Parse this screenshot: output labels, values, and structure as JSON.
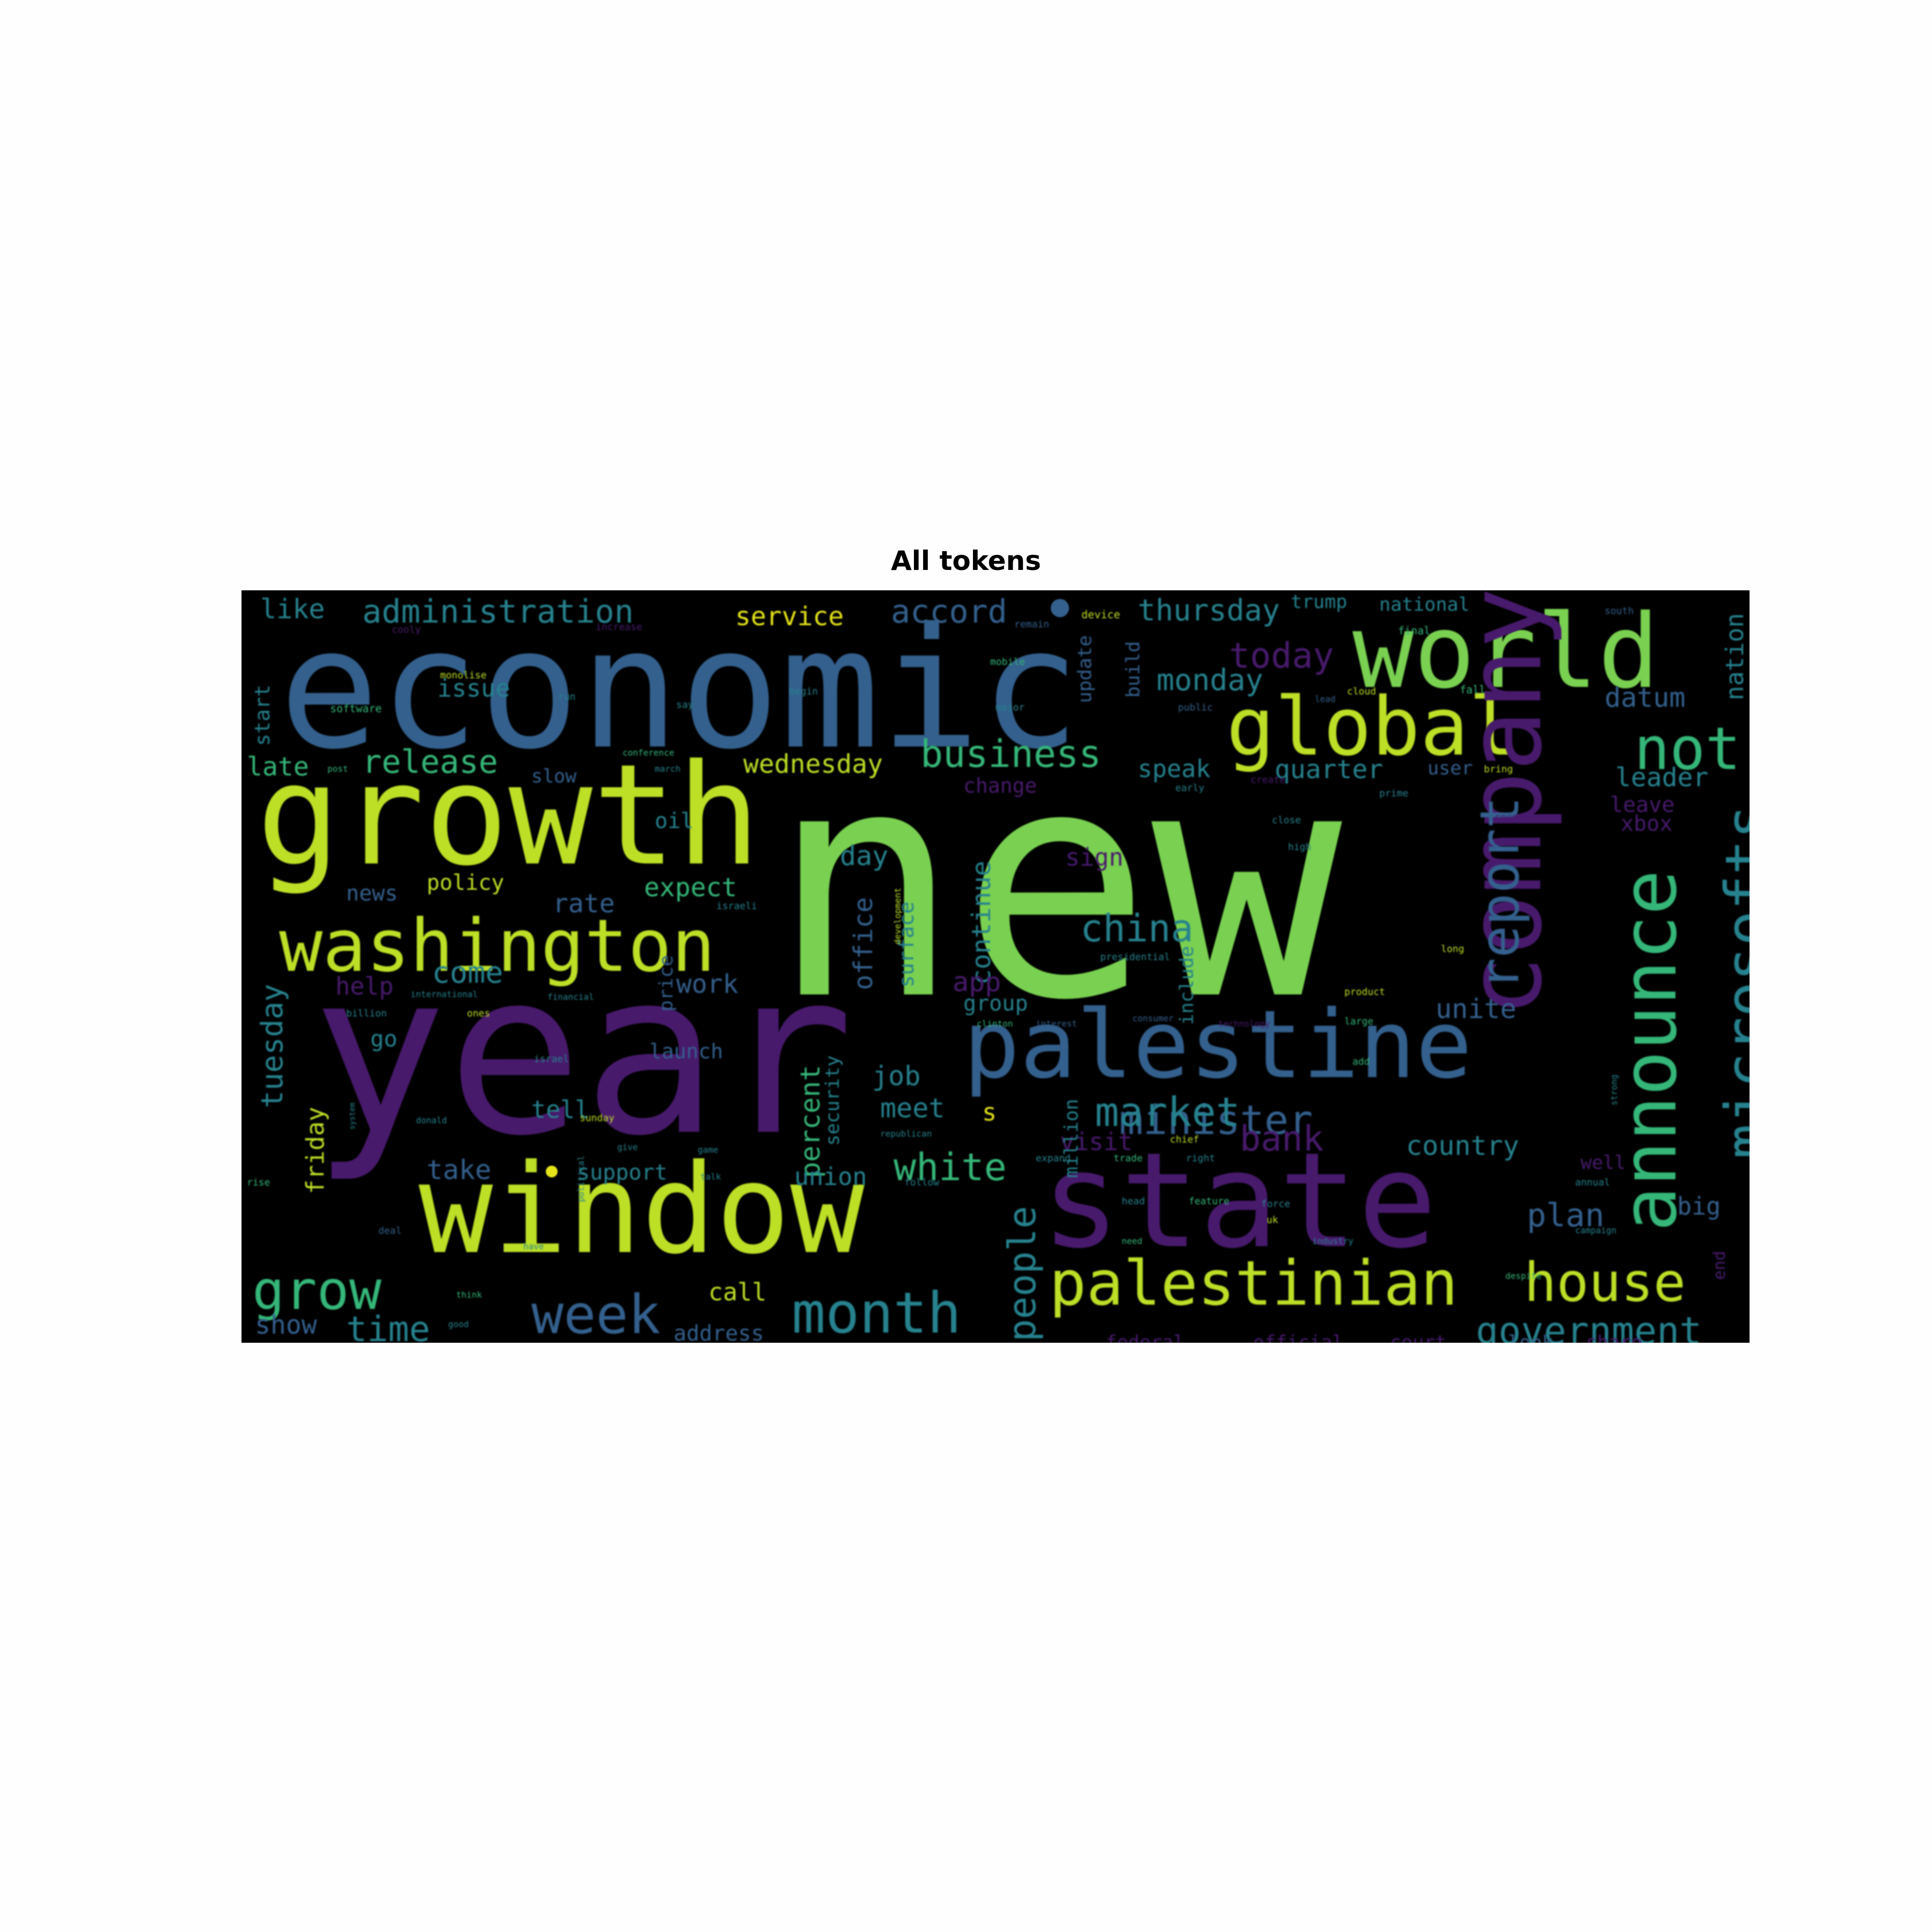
{
  "title": "All tokens",
  "palette": {
    "purple": "#481a6c",
    "blue": "#34608d",
    "teal": "#26828e",
    "green": "#35b779",
    "lime": "#7ad151",
    "yellow": "#bddf26",
    "brightyellow": "#e5e419"
  },
  "words": [
    {
      "text": "economic",
      "color": "blue"
    },
    {
      "text": "new",
      "color": "lime"
    },
    {
      "text": "year",
      "color": "purple"
    },
    {
      "text": "growth",
      "color": "yellow"
    },
    {
      "text": "window",
      "color": "yellow"
    },
    {
      "text": "state",
      "color": "purple"
    },
    {
      "text": "palestine",
      "color": "blue"
    },
    {
      "text": "world",
      "color": "lime"
    },
    {
      "text": "global",
      "color": "yellow"
    },
    {
      "text": "company",
      "color": "purple"
    },
    {
      "text": "washington",
      "color": "yellow"
    },
    {
      "text": "announce",
      "color": "green"
    },
    {
      "text": "microsofts",
      "color": "teal"
    },
    {
      "text": "palestinian",
      "color": "yellow"
    },
    {
      "text": "report",
      "color": "blue"
    },
    {
      "text": "house",
      "color": "yellow"
    },
    {
      "text": "not",
      "color": "green"
    },
    {
      "text": "month",
      "color": "teal"
    },
    {
      "text": "week",
      "color": "blue"
    },
    {
      "text": "grow",
      "color": "green"
    },
    {
      "text": "government",
      "color": "teal"
    },
    {
      "text": "minister",
      "color": "blue"
    },
    {
      "text": "market",
      "color": "teal"
    },
    {
      "text": "china",
      "color": "teal"
    },
    {
      "text": "business",
      "color": "green"
    },
    {
      "text": "people",
      "color": "teal"
    },
    {
      "text": "white",
      "color": "green"
    },
    {
      "text": "administration",
      "color": "teal"
    },
    {
      "text": "accord",
      "color": "blue"
    },
    {
      "text": "thursday",
      "color": "teal"
    },
    {
      "text": "today",
      "color": "purple"
    },
    {
      "text": "monday",
      "color": "teal"
    },
    {
      "text": "bank",
      "color": "purple"
    },
    {
      "text": "plan",
      "color": "blue"
    },
    {
      "text": "time",
      "color": "teal"
    },
    {
      "text": "release",
      "color": "green"
    },
    {
      "text": "percent",
      "color": "green"
    },
    {
      "text": "tuesday",
      "color": "teal"
    },
    {
      "text": "continue",
      "color": "teal"
    },
    {
      "text": "office",
      "color": "blue"
    },
    {
      "text": "surface",
      "color": "teal"
    },
    {
      "text": "include",
      "color": "teal"
    },
    {
      "text": "unite",
      "color": "blue"
    },
    {
      "text": "country",
      "color": "teal"
    },
    {
      "text": "datum",
      "color": "blue"
    },
    {
      "text": "nation",
      "color": "teal"
    },
    {
      "text": "quarter",
      "color": "teal"
    },
    {
      "text": "leader",
      "color": "teal"
    },
    {
      "text": "xbox",
      "color": "purple"
    },
    {
      "text": "leave",
      "color": "purple"
    },
    {
      "text": "service",
      "color": "brightyellow"
    },
    {
      "text": "wednesday",
      "color": "yellow"
    },
    {
      "text": "speak",
      "color": "teal"
    },
    {
      "text": "change",
      "color": "purple"
    },
    {
      "text": "like",
      "color": "teal"
    },
    {
      "text": "issue",
      "color": "teal"
    },
    {
      "text": "late",
      "color": "green"
    },
    {
      "text": "start",
      "color": "teal"
    },
    {
      "text": "day",
      "color": "teal"
    },
    {
      "text": "oil",
      "color": "teal"
    },
    {
      "text": "rate",
      "color": "blue"
    },
    {
      "text": "expect",
      "color": "green"
    },
    {
      "text": "policy",
      "color": "yellow"
    },
    {
      "text": "news",
      "color": "blue"
    },
    {
      "text": "help",
      "color": "purple"
    },
    {
      "text": "come",
      "color": "teal"
    },
    {
      "text": "work",
      "color": "blue"
    },
    {
      "text": "app",
      "color": "purple"
    },
    {
      "text": "group",
      "color": "teal"
    },
    {
      "text": "sign",
      "color": "purple"
    },
    {
      "text": "friday",
      "color": "yellow"
    },
    {
      "text": "take",
      "color": "blue"
    },
    {
      "text": "support",
      "color": "teal"
    },
    {
      "text": "union",
      "color": "teal"
    },
    {
      "text": "job",
      "color": "teal"
    },
    {
      "text": "meet",
      "color": "teal"
    },
    {
      "text": "visit",
      "color": "purple"
    },
    {
      "text": "million",
      "color": "teal"
    },
    {
      "text": "call",
      "color": "yellow"
    },
    {
      "text": "show",
      "color": "blue"
    },
    {
      "text": "address",
      "color": "blue"
    },
    {
      "text": "tell",
      "color": "teal"
    },
    {
      "text": "launch",
      "color": "blue"
    },
    {
      "text": "price",
      "color": "blue"
    },
    {
      "text": "security",
      "color": "teal"
    },
    {
      "text": "go",
      "color": "teal"
    },
    {
      "text": "update",
      "color": "blue"
    },
    {
      "text": "build",
      "color": "blue"
    },
    {
      "text": "slow",
      "color": "blue"
    },
    {
      "text": "big",
      "color": "blue"
    },
    {
      "text": "official",
      "color": "purple"
    },
    {
      "text": "court",
      "color": "purple"
    },
    {
      "text": "federal",
      "color": "purple"
    },
    {
      "text": "look",
      "color": "blue"
    },
    {
      "text": "share",
      "color": "purple"
    },
    {
      "text": "trump",
      "color": "teal"
    },
    {
      "text": "national",
      "color": "teal"
    },
    {
      "text": "user",
      "color": "blue"
    },
    {
      "text": "well",
      "color": "purple"
    },
    {
      "text": "end",
      "color": "purple"
    },
    {
      "text": "s",
      "color": "brightyellow"
    },
    {
      "text": "device",
      "color": "yellow"
    },
    {
      "text": "software",
      "color": "green"
    },
    {
      "text": "monolise",
      "color": "yellow"
    },
    {
      "text": "mobile",
      "color": "green"
    },
    {
      "text": "public",
      "color": "blue"
    },
    {
      "text": "major",
      "color": "teal"
    },
    {
      "text": "begin",
      "color": "teal"
    },
    {
      "text": "run",
      "color": "teal"
    },
    {
      "text": "say",
      "color": "teal"
    },
    {
      "text": "conference",
      "color": "green"
    },
    {
      "text": "march",
      "color": "teal"
    },
    {
      "text": "post",
      "color": "green"
    },
    {
      "text": "cloud",
      "color": "yellow"
    },
    {
      "text": "lead",
      "color": "blue"
    },
    {
      "text": "fall",
      "color": "green"
    },
    {
      "text": "final",
      "color": "green"
    },
    {
      "text": "south",
      "color": "blue"
    },
    {
      "text": "remain",
      "color": "blue"
    },
    {
      "text": "increase",
      "color": "purple"
    },
    {
      "text": "cooly",
      "color": "purple"
    },
    {
      "text": "bring",
      "color": "yellow"
    },
    {
      "text": "prime",
      "color": "teal"
    },
    {
      "text": "early",
      "color": "teal"
    },
    {
      "text": "create",
      "color": "purple"
    },
    {
      "text": "close",
      "color": "teal"
    },
    {
      "text": "spend",
      "color": "purple"
    },
    {
      "text": "high",
      "color": "teal"
    },
    {
      "text": "long",
      "color": "yellow"
    },
    {
      "text": "presidential",
      "color": "teal"
    },
    {
      "text": "development",
      "color": "yellow"
    },
    {
      "text": "israeli",
      "color": "teal"
    },
    {
      "text": "israel",
      "color": "teal"
    },
    {
      "text": "international",
      "color": "teal"
    },
    {
      "text": "financial",
      "color": "teal"
    },
    {
      "text": "billion",
      "color": "teal"
    },
    {
      "text": "ones",
      "color": "yellow"
    },
    {
      "text": "clinton",
      "color": "green"
    },
    {
      "text": "interest",
      "color": "blue"
    },
    {
      "text": "consumer",
      "color": "blue"
    },
    {
      "text": "product",
      "color": "yellow"
    },
    {
      "text": "technology",
      "color": "purple"
    },
    {
      "text": "large",
      "color": "green"
    },
    {
      "text": "add",
      "color": "green"
    },
    {
      "text": "sunday",
      "color": "yellow"
    },
    {
      "text": "game",
      "color": "teal"
    },
    {
      "text": "give",
      "color": "teal"
    },
    {
      "text": "talk",
      "color": "teal"
    },
    {
      "text": "republican",
      "color": "teal"
    },
    {
      "text": "expand",
      "color": "teal"
    },
    {
      "text": "trade",
      "color": "green"
    },
    {
      "text": "right",
      "color": "teal"
    },
    {
      "text": "head",
      "color": "teal"
    },
    {
      "text": "feature",
      "color": "green"
    },
    {
      "text": "force",
      "color": "teal"
    },
    {
      "text": "uk",
      "color": "yellow"
    },
    {
      "text": "need",
      "color": "green"
    },
    {
      "text": "industry",
      "color": "teal"
    },
    {
      "text": "campaign",
      "color": "teal"
    },
    {
      "text": "annual",
      "color": "teal"
    },
    {
      "text": "despite",
      "color": "green"
    },
    {
      "text": "donald",
      "color": "teal"
    },
    {
      "text": "deal",
      "color": "blue"
    },
    {
      "text": "rise",
      "color": "green"
    },
    {
      "text": "think",
      "color": "green"
    },
    {
      "text": "good",
      "color": "teal"
    },
    {
      "text": "chief",
      "color": "yellow"
    },
    {
      "text": "follow",
      "color": "teal"
    },
    {
      "text": "strong",
      "color": "teal"
    },
    {
      "text": "political",
      "color": "teal"
    },
    {
      "text": "have",
      "color": "teal"
    },
    {
      "text": "system",
      "color": "teal"
    }
  ]
}
